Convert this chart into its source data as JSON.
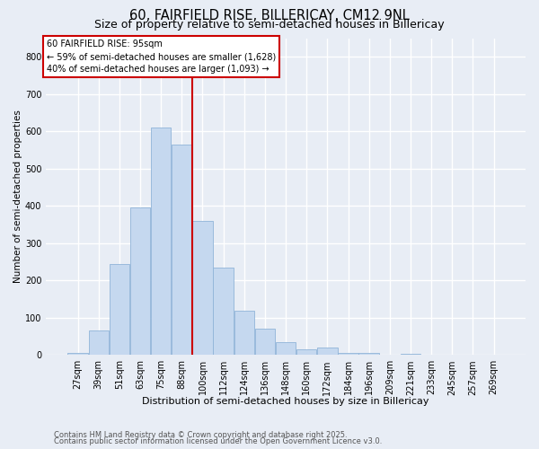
{
  "title1": "60, FAIRFIELD RISE, BILLERICAY, CM12 9NL",
  "title2": "Size of property relative to semi-detached houses in Billericay",
  "xlabel": "Distribution of semi-detached houses by size in Billericay",
  "ylabel": "Number of semi-detached properties",
  "footnote1": "Contains HM Land Registry data © Crown copyright and database right 2025.",
  "footnote2": "Contains public sector information licensed under the Open Government Licence v3.0.",
  "bin_labels": [
    "27sqm",
    "39sqm",
    "51sqm",
    "63sqm",
    "75sqm",
    "88sqm",
    "100sqm",
    "112sqm",
    "124sqm",
    "136sqm",
    "148sqm",
    "160sqm",
    "172sqm",
    "184sqm",
    "196sqm",
    "209sqm",
    "221sqm",
    "233sqm",
    "245sqm",
    "257sqm",
    "269sqm"
  ],
  "bar_values": [
    5,
    65,
    245,
    395,
    610,
    565,
    360,
    235,
    120,
    70,
    35,
    15,
    20,
    5,
    5,
    0,
    3,
    0,
    0,
    0,
    0
  ],
  "bar_color": "#c5d8ef",
  "bar_edge_color": "#90b4d8",
  "vline_bin_index": 6,
  "vline_color": "#cc0000",
  "annotation_title": "60 FAIRFIELD RISE: 95sqm",
  "annotation_line1": "← 59% of semi-detached houses are smaller (1,628)",
  "annotation_line2": "40% of semi-detached houses are larger (1,093) →",
  "ylim_max": 850,
  "yticks": [
    0,
    100,
    200,
    300,
    400,
    500,
    600,
    700,
    800
  ],
  "background_color": "#e8edf5",
  "grid_color": "#ffffff",
  "title1_fontsize": 10.5,
  "title2_fontsize": 9,
  "tick_fontsize": 7,
  "xlabel_fontsize": 8,
  "ylabel_fontsize": 7.5,
  "ann_fontsize": 7,
  "footnote_fontsize": 6
}
